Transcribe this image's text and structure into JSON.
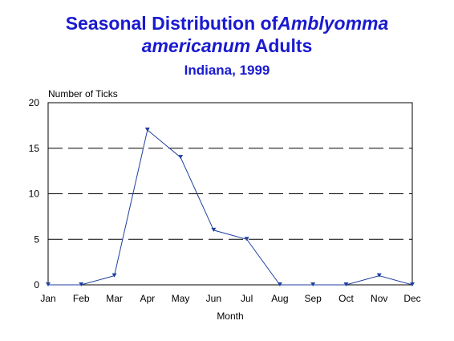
{
  "chart_data": {
    "type": "line",
    "title_prefix": "Seasonal Distribution of",
    "title_italic_1": "Amblyomma",
    "title_italic_2": "americanum",
    "title_suffix": "Adults",
    "subtitle": "Indiana, 1999",
    "ylabel": "Number of Ticks",
    "xlabel": "Month",
    "categories": [
      "Jan",
      "Feb",
      "Mar",
      "Apr",
      "May",
      "Jun",
      "Jul",
      "Aug",
      "Sep",
      "Oct",
      "Nov",
      "Dec"
    ],
    "values": [
      0,
      0,
      1,
      17,
      14,
      6,
      5,
      0,
      0,
      0,
      1,
      0
    ],
    "ylim": [
      0,
      20
    ],
    "yticks": [
      0,
      5,
      10,
      15,
      20
    ],
    "grid_lines": [
      5,
      10,
      15
    ],
    "grid": "dashed-horizontal",
    "legend": "none",
    "series_color": "#1f3f9f"
  }
}
